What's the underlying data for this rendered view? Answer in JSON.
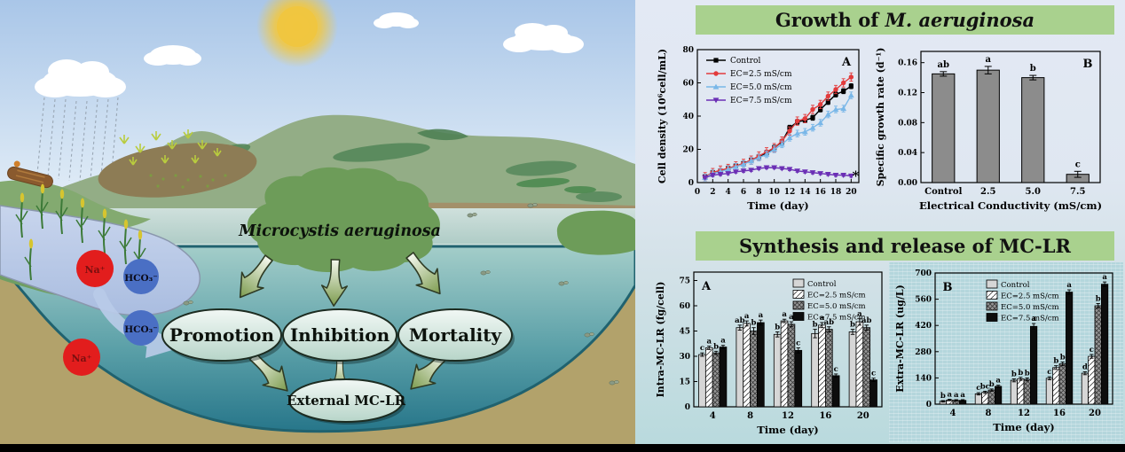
{
  "sections": {
    "growth": {
      "title_prefix": "Growth of ",
      "title_species": "M. aeruginosa"
    },
    "synthesis": {
      "title": "Synthesis and release of MC-LR"
    }
  },
  "illustration": {
    "organism_label": "Microcystis aeruginosa",
    "nodes": {
      "promotion": "Promotion",
      "inhibition": "Inhibition",
      "mortality": "Mortality",
      "external": "External MC-LR"
    },
    "ions": {
      "na": "Na⁺",
      "hco3": "HCO₃⁻"
    },
    "colors": {
      "na_circle": "#e21d1d",
      "hco3_circle": "#4a6fc4",
      "bloom_green": "#6d9c59",
      "banner_green": "#a9d18e"
    }
  },
  "chart_data": [
    {
      "id": "cell-density",
      "type": "line",
      "panel_label": "A",
      "xlabel": "Time (day)",
      "ylabel": "Cell density (10⁶cell/mL)",
      "xlim": [
        0,
        21
      ],
      "ylim": [
        0,
        80
      ],
      "xticks": [
        0,
        2,
        4,
        6,
        8,
        10,
        12,
        14,
        16,
        18,
        20
      ],
      "yticks": [
        0,
        20,
        40,
        60,
        80
      ],
      "x": [
        1,
        2,
        3,
        4,
        5,
        6,
        7,
        8,
        9,
        10,
        11,
        12,
        13,
        14,
        15,
        16,
        17,
        18,
        19,
        20
      ],
      "series": [
        {
          "name": "Control",
          "color": "#000000",
          "marker": "square",
          "error": 1.5,
          "values": [
            3.5,
            6,
            7,
            8.5,
            10,
            11.5,
            13.5,
            15.5,
            18,
            21,
            24.5,
            33,
            36.5,
            37.5,
            39,
            44,
            48.5,
            53,
            55,
            58
          ]
        },
        {
          "name": "EC=2.5 mS/cm",
          "color": "#e23b3c",
          "marker": "circle",
          "error": 2.5,
          "values": [
            3.5,
            6,
            7.5,
            8.5,
            10,
            11.5,
            13.5,
            16,
            18.5,
            21,
            25,
            31,
            37,
            38.5,
            44,
            47,
            52,
            56,
            60,
            63.5
          ]
        },
        {
          "name": "EC=5.0 mS/cm",
          "color": "#79b7e8",
          "marker": "triangle-up",
          "error": 2,
          "values": [
            3,
            5.5,
            6.5,
            8,
            9.5,
            11,
            13,
            15,
            17,
            20,
            23,
            27,
            29.5,
            30.5,
            33,
            36,
            41,
            44,
            44.5,
            52.5
          ]
        },
        {
          "name": "EC=7.5 mS/cm",
          "color": "#6b2fb5",
          "marker": "triangle-down",
          "error": 0.8,
          "values": [
            3,
            4.5,
            5,
            5.5,
            6.5,
            7,
            7.5,
            8.5,
            9,
            9,
            8.5,
            8,
            7,
            6.5,
            6,
            5.5,
            5,
            4.5,
            4.5,
            4
          ]
        }
      ],
      "legend_pos": "top-left",
      "annotation": {
        "text": "*",
        "x": 20.6,
        "y": 4
      }
    },
    {
      "id": "growth-rate",
      "type": "bar",
      "panel_label": "B",
      "xlabel": "Electrical Conductivity (mS/cm)",
      "ylabel": "Specific growth rate (d⁻¹)",
      "categories": [
        "Control",
        "2.5",
        "5.0",
        "7.5"
      ],
      "values": [
        0.145,
        0.15,
        0.14,
        0.011
      ],
      "errors": [
        0.003,
        0.005,
        0.003,
        0.004
      ],
      "letters": [
        "ab",
        "a",
        "b",
        "c"
      ],
      "ylim": [
        0,
        0.175
      ],
      "yticks": [
        0,
        0.04,
        0.08,
        0.12,
        0.16
      ],
      "ytick_labels": [
        "0.00",
        "0.04",
        "0.08",
        "0.12",
        "0.16"
      ],
      "bar_color": "#8c8c8c"
    },
    {
      "id": "intra-mclr",
      "type": "grouped-bar",
      "panel_label": "A",
      "panel_label_pos": "tl",
      "xlabel": "Time (day)",
      "ylabel": "Intra-MC-LR (fg/cell)",
      "categories": [
        "4",
        "8",
        "12",
        "16",
        "20"
      ],
      "ylim": [
        0,
        80
      ],
      "yticks": [
        0,
        15,
        30,
        45,
        60,
        75
      ],
      "series": [
        {
          "name": "Control",
          "fill": "lightgray",
          "values": [
            31,
            47,
            43,
            43.5,
            44.5
          ],
          "errors": [
            1,
            1.5,
            1.5,
            2.5,
            1.5
          ],
          "letters": [
            "c",
            "ab",
            "b",
            "b",
            "b"
          ]
        },
        {
          "name": "EC=2.5 mS/cm",
          "fill": "diagonal",
          "values": [
            35,
            49.5,
            51,
            48.5,
            50.5
          ],
          "errors": [
            1,
            1.5,
            1,
            1.5,
            2
          ],
          "letters": [
            "a",
            "a",
            "a",
            "a",
            "a"
          ]
        },
        {
          "name": "EC=5.0 mS/cm",
          "fill": "crosshatch",
          "values": [
            32,
            45,
            49,
            46,
            47
          ],
          "errors": [
            1,
            2,
            1.5,
            1.5,
            1.5
          ],
          "letters": [
            "b",
            "b",
            "a",
            "ab",
            "ab"
          ]
        },
        {
          "name": "EC=7.5 mS/cm",
          "fill": "black",
          "values": [
            35.5,
            50,
            33.5,
            18.5,
            16
          ],
          "errors": [
            1,
            1.5,
            1.5,
            1,
            1
          ],
          "letters": [
            "a",
            "a",
            "c",
            "c",
            "c"
          ]
        }
      ],
      "legend_pos": "top-right"
    },
    {
      "id": "extra-mclr",
      "type": "grouped-bar",
      "panel_label": "B",
      "panel_label_pos": "tl",
      "xlabel": "Time (day)",
      "ylabel": "Extra-MC-LR (ug/L)",
      "categories": [
        "4",
        "8",
        "12",
        "16",
        "20"
      ],
      "ylim": [
        0,
        700
      ],
      "yticks": [
        0,
        140,
        280,
        420,
        560,
        700
      ],
      "series": [
        {
          "name": "Control",
          "fill": "lightgray",
          "values": [
            15,
            55,
            127,
            138,
            165
          ],
          "errors": [
            4,
            6,
            8,
            8,
            8
          ],
          "letters": [
            "b",
            "c",
            "b",
            "c",
            "d"
          ]
        },
        {
          "name": "EC=2.5 mS/cm",
          "fill": "diagonal",
          "values": [
            22,
            63,
            135,
            195,
            255
          ],
          "errors": [
            4,
            6,
            8,
            10,
            10
          ],
          "letters": [
            "a",
            "bc",
            "b",
            "b",
            "c"
          ]
        },
        {
          "name": "EC=5.0 mS/cm",
          "fill": "crosshatch",
          "values": [
            20,
            75,
            132,
            215,
            525
          ],
          "errors": [
            4,
            6,
            8,
            10,
            12
          ],
          "letters": [
            "a",
            "b",
            "b",
            "b",
            "b"
          ]
        },
        {
          "name": "EC=7.5 mS/cm",
          "fill": "black",
          "values": [
            20,
            95,
            415,
            598,
            640
          ],
          "errors": [
            4,
            6,
            15,
            12,
            12
          ],
          "letters": [
            "a",
            "a",
            "a",
            "a",
            "a"
          ]
        }
      ],
      "legend_pos": "top-center"
    }
  ]
}
